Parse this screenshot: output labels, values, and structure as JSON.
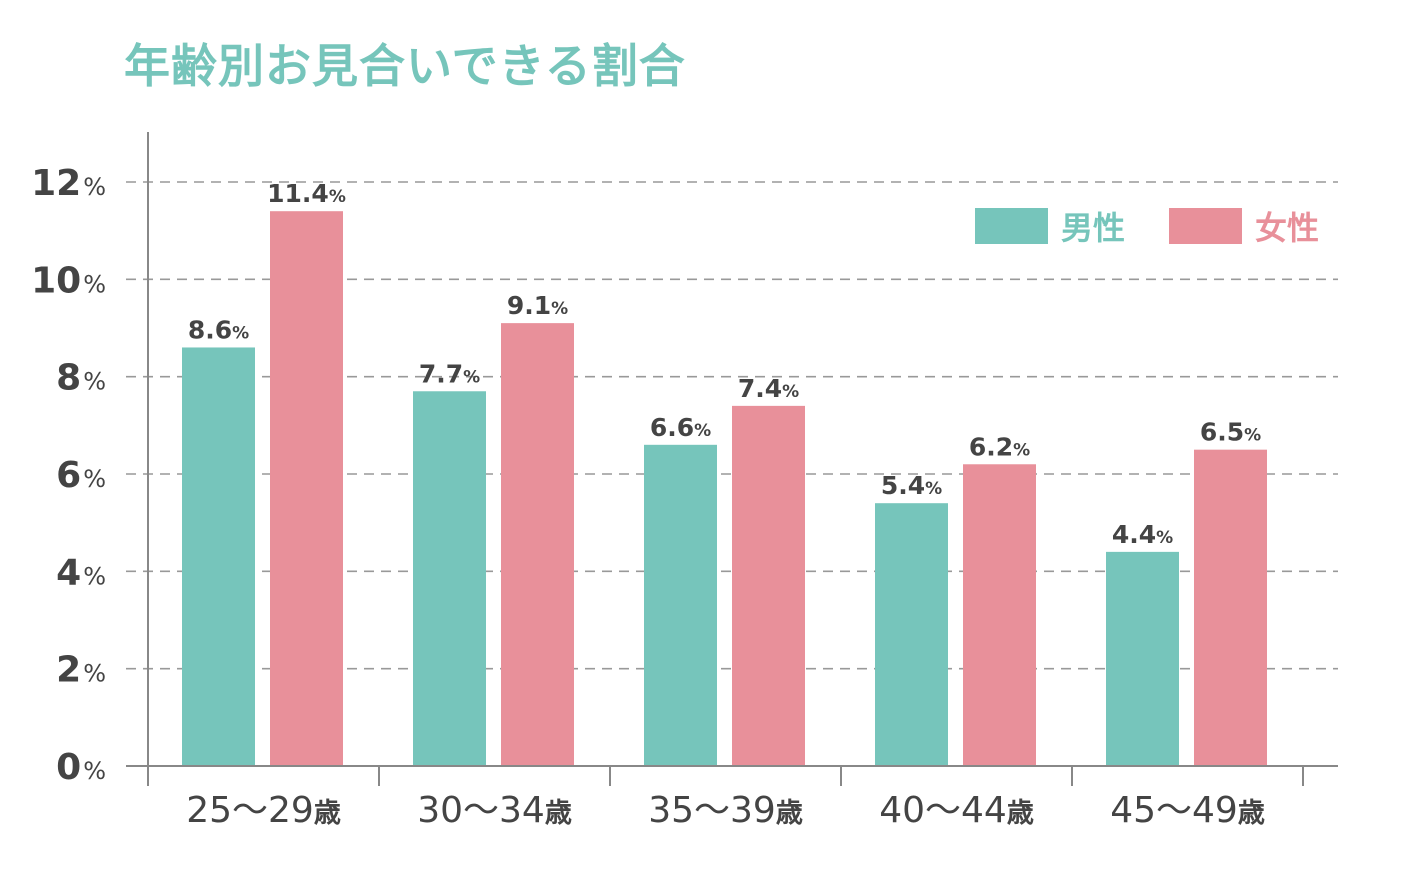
{
  "chart_data": {
    "type": "bar",
    "title": "年齢別お見合いできる割合",
    "xlabel": "",
    "ylabel": "",
    "categories": [
      "25～29歳",
      "30～34歳",
      "35～39歳",
      "40～44歳",
      "45～49歳"
    ],
    "category_parts": [
      {
        "range": "25～29",
        "unit": "歳"
      },
      {
        "range": "30～34",
        "unit": "歳"
      },
      {
        "range": "35～39",
        "unit": "歳"
      },
      {
        "range": "40～44",
        "unit": "歳"
      },
      {
        "range": "45～49",
        "unit": "歳"
      }
    ],
    "series": [
      {
        "name": "男性",
        "color": "#76c5bb",
        "values": [
          8.6,
          7.7,
          6.6,
          5.4,
          4.4
        ]
      },
      {
        "name": "女性",
        "color": "#e8909a",
        "values": [
          11.4,
          9.1,
          7.4,
          6.2,
          6.5
        ]
      }
    ],
    "value_unit": "%",
    "ylim": [
      0,
      12
    ],
    "yticks": [
      0,
      2,
      4,
      6,
      8,
      10,
      12
    ],
    "grid": true,
    "grid_style": "dashed",
    "legend_position": "top-right"
  },
  "colors": {
    "title": "#76c5bb",
    "text": "#444444",
    "axis": "#888888",
    "grid": "#999999"
  }
}
